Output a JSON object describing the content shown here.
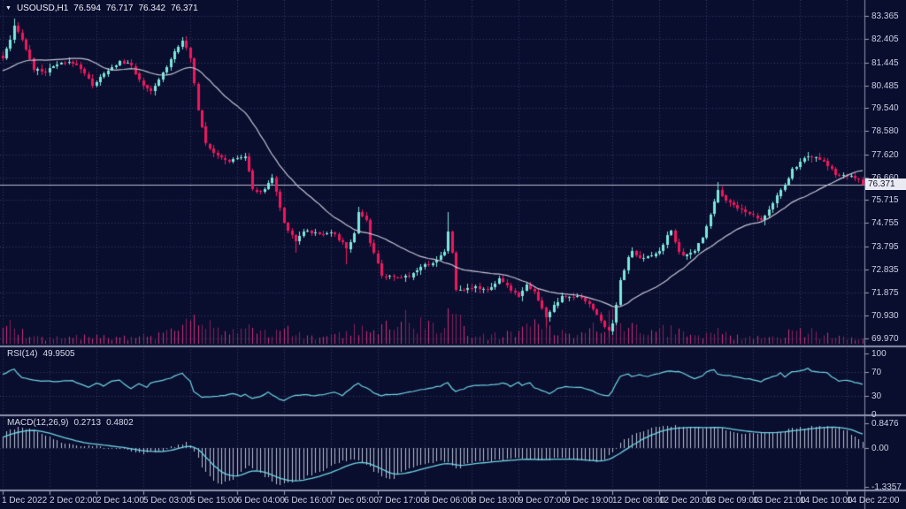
{
  "window": {
    "caret": "▼",
    "title_symbol": "USOUSD,H1"
  },
  "quote": {
    "open": "76.594",
    "high": "76.717",
    "low": "76.342",
    "close": "76.371"
  },
  "indicators": {
    "rsi": {
      "label": "RSI(14)",
      "value": "49.9505",
      "ticks": [
        "100",
        "70",
        "30",
        "0"
      ],
      "levels": [
        70,
        30
      ]
    },
    "macd": {
      "label": "MACD(12,26,9)",
      "macd_value": "0.2713",
      "signal_value": "0.4802",
      "ticks": [
        "0.8476",
        "0.00",
        "-1.3357"
      ]
    }
  },
  "price_axis": {
    "ticks": [
      "83.365",
      "82.405",
      "81.445",
      "80.485",
      "79.540",
      "78.580",
      "77.620",
      "76.660",
      "75.715",
      "74.755",
      "73.795",
      "72.835",
      "71.875",
      "70.930",
      "69.970"
    ],
    "current": "76.371"
  },
  "time_axis": {
    "ticks": [
      "1 Dec 2022",
      "2 Dec 02:00",
      "2 Dec 14:00",
      "5 Dec 03:00",
      "5 Dec 15:00",
      "6 Dec 04:00",
      "6 Dec 16:00",
      "7 Dec 05:00",
      "7 Dec 17:00",
      "8 Dec 06:00",
      "8 Dec 18:00",
      "9 Dec 07:00",
      "9 Dec 19:00",
      "12 Dec 08:00",
      "12 Dec 20:00",
      "13 Dec 09:00",
      "13 Dec 21:00",
      "14 Dec 10:00",
      "14 Dec 22:00"
    ]
  },
  "chart_data": {
    "type": "candlestick",
    "symbol": "USOUSD",
    "timeframe": "H1",
    "bars": 221,
    "bars_per_time_tick": 12,
    "current_price": 76.371,
    "price_ticks": [
      83.365,
      82.405,
      81.445,
      80.485,
      79.54,
      78.58,
      77.62,
      76.66,
      75.715,
      74.755,
      73.795,
      72.835,
      71.875,
      70.93,
      69.97
    ],
    "price_range_top": 83.365,
    "price_range_bottom": 69.97,
    "ma_period": 22,
    "ma_seed_price": 81.0,
    "close_path": [
      [
        0,
        81.6
      ],
      [
        2,
        82.35
      ],
      [
        3,
        82.9
      ],
      [
        5,
        82.45
      ],
      [
        6,
        82.0
      ],
      [
        8,
        81.15
      ],
      [
        11,
        81.05
      ],
      [
        14,
        81.35
      ],
      [
        18,
        81.45
      ],
      [
        20,
        81.2
      ],
      [
        23,
        80.5
      ],
      [
        26,
        80.95
      ],
      [
        30,
        81.5
      ],
      [
        33,
        81.3
      ],
      [
        36,
        80.45
      ],
      [
        38,
        80.2
      ],
      [
        41,
        81.0
      ],
      [
        44,
        81.9
      ],
      [
        46,
        82.4
      ],
      [
        48,
        81.6
      ],
      [
        50,
        79.5
      ],
      [
        52,
        78.1
      ],
      [
        55,
        77.5
      ],
      [
        58,
        77.35
      ],
      [
        62,
        77.55
      ],
      [
        64,
        76.2
      ],
      [
        66,
        76.0
      ],
      [
        69,
        76.65
      ],
      [
        71,
        75.4
      ],
      [
        72,
        74.75
      ],
      [
        75,
        74.0
      ],
      [
        77,
        74.45
      ],
      [
        81,
        74.3
      ],
      [
        84,
        74.4
      ],
      [
        87,
        73.9
      ],
      [
        88,
        73.7
      ],
      [
        90,
        74.3
      ],
      [
        91,
        75.25
      ],
      [
        93,
        74.9
      ],
      [
        94,
        73.9
      ],
      [
        97,
        72.6
      ],
      [
        100,
        72.45
      ],
      [
        104,
        72.55
      ],
      [
        107,
        72.95
      ],
      [
        111,
        73.2
      ],
      [
        113,
        73.6
      ],
      [
        114,
        74.45
      ],
      [
        115,
        73.5
      ],
      [
        116,
        71.95
      ],
      [
        119,
        72.1
      ],
      [
        124,
        72.0
      ],
      [
        127,
        72.4
      ],
      [
        130,
        72.0
      ],
      [
        132,
        71.75
      ],
      [
        134,
        72.2
      ],
      [
        136,
        71.9
      ],
      [
        139,
        70.85
      ],
      [
        141,
        71.3
      ],
      [
        143,
        71.65
      ],
      [
        147,
        71.7
      ],
      [
        150,
        71.4
      ],
      [
        153,
        70.7
      ],
      [
        155,
        70.25
      ],
      [
        156,
        70.6
      ],
      [
        157,
        71.4
      ],
      [
        158,
        72.4
      ],
      [
        160,
        73.3
      ],
      [
        161,
        73.6
      ],
      [
        163,
        73.25
      ],
      [
        166,
        73.4
      ],
      [
        168,
        73.6
      ],
      [
        170,
        74.2
      ],
      [
        171,
        74.45
      ],
      [
        173,
        73.6
      ],
      [
        174,
        73.35
      ],
      [
        177,
        73.6
      ],
      [
        179,
        74.2
      ],
      [
        181,
        75.1
      ],
      [
        183,
        76.2
      ],
      [
        185,
        75.7
      ],
      [
        187,
        75.5
      ],
      [
        190,
        75.2
      ],
      [
        193,
        75.0
      ],
      [
        194,
        74.9
      ],
      [
        196,
        75.3
      ],
      [
        198,
        75.9
      ],
      [
        200,
        76.3
      ],
      [
        202,
        77.0
      ],
      [
        204,
        77.3
      ],
      [
        206,
        77.55
      ],
      [
        208,
        77.45
      ],
      [
        210,
        77.3
      ],
      [
        212,
        77.0
      ],
      [
        213,
        76.75
      ],
      [
        216,
        76.7
      ],
      [
        218,
        76.65
      ],
      [
        219,
        76.55
      ],
      [
        220,
        76.371
      ]
    ],
    "extremes": [
      [
        3,
        "h",
        83.28
      ],
      [
        46,
        "h",
        82.5
      ],
      [
        75,
        "l",
        73.55
      ],
      [
        88,
        "l",
        73.05
      ],
      [
        91,
        "h",
        75.45
      ],
      [
        114,
        "h",
        75.2
      ],
      [
        139,
        "l",
        70.45
      ],
      [
        155,
        "l",
        69.97
      ],
      [
        183,
        "h",
        76.45
      ],
      [
        206,
        "h",
        77.7
      ]
    ],
    "volume_path": [
      [
        0,
        14
      ],
      [
        3,
        22
      ],
      [
        6,
        10
      ],
      [
        12,
        6
      ],
      [
        20,
        8
      ],
      [
        30,
        7
      ],
      [
        40,
        9
      ],
      [
        45,
        14
      ],
      [
        48,
        30
      ],
      [
        50,
        38
      ],
      [
        53,
        26
      ],
      [
        58,
        12
      ],
      [
        63,
        16
      ],
      [
        68,
        10
      ],
      [
        72,
        16
      ],
      [
        78,
        7
      ],
      [
        83,
        6
      ],
      [
        88,
        14
      ],
      [
        91,
        18
      ],
      [
        94,
        16
      ],
      [
        97,
        20
      ],
      [
        100,
        24
      ],
      [
        103,
        28
      ],
      [
        106,
        22
      ],
      [
        109,
        26
      ],
      [
        112,
        20
      ],
      [
        114,
        30
      ],
      [
        116,
        34
      ],
      [
        119,
        12
      ],
      [
        124,
        8
      ],
      [
        128,
        10
      ],
      [
        132,
        14
      ],
      [
        135,
        18
      ],
      [
        138,
        24
      ],
      [
        140,
        18
      ],
      [
        143,
        12
      ],
      [
        147,
        10
      ],
      [
        150,
        14
      ],
      [
        153,
        22
      ],
      [
        155,
        30
      ],
      [
        157,
        36
      ],
      [
        158,
        28
      ],
      [
        161,
        18
      ],
      [
        164,
        12
      ],
      [
        168,
        14
      ],
      [
        171,
        16
      ],
      [
        174,
        10
      ],
      [
        178,
        8
      ],
      [
        181,
        12
      ],
      [
        183,
        16
      ],
      [
        186,
        8
      ],
      [
        190,
        7
      ],
      [
        194,
        8
      ],
      [
        198,
        10
      ],
      [
        202,
        12
      ],
      [
        206,
        14
      ],
      [
        210,
        10
      ],
      [
        213,
        12
      ],
      [
        216,
        8
      ],
      [
        220,
        6
      ]
    ],
    "rsi_path": [
      [
        0,
        66
      ],
      [
        3,
        74
      ],
      [
        5,
        61
      ],
      [
        9,
        55
      ],
      [
        13,
        54
      ],
      [
        18,
        56
      ],
      [
        22,
        44
      ],
      [
        24,
        51
      ],
      [
        26,
        47
      ],
      [
        28,
        55
      ],
      [
        30,
        57
      ],
      [
        31,
        50
      ],
      [
        33,
        43
      ],
      [
        35,
        50
      ],
      [
        37,
        44
      ],
      [
        38,
        52
      ],
      [
        40,
        55
      ],
      [
        43,
        60
      ],
      [
        46,
        67
      ],
      [
        48,
        55
      ],
      [
        49,
        38
      ],
      [
        51,
        28
      ],
      [
        54,
        30
      ],
      [
        57,
        31
      ],
      [
        59,
        34
      ],
      [
        61,
        30
      ],
      [
        62,
        33
      ],
      [
        64,
        27
      ],
      [
        66,
        30
      ],
      [
        68,
        36
      ],
      [
        70,
        29
      ],
      [
        72,
        22
      ],
      [
        74,
        30
      ],
      [
        77,
        33
      ],
      [
        80,
        31
      ],
      [
        83,
        34
      ],
      [
        85,
        36
      ],
      [
        87,
        31
      ],
      [
        89,
        42
      ],
      [
        91,
        52
      ],
      [
        92,
        47
      ],
      [
        94,
        40
      ],
      [
        95,
        35
      ],
      [
        97,
        31
      ],
      [
        99,
        33
      ],
      [
        101,
        32
      ],
      [
        103,
        35
      ],
      [
        105,
        38
      ],
      [
        108,
        41
      ],
      [
        110,
        44
      ],
      [
        112,
        47
      ],
      [
        114,
        52
      ],
      [
        115,
        43
      ],
      [
        116,
        38
      ],
      [
        118,
        42
      ],
      [
        120,
        47
      ],
      [
        123,
        48
      ],
      [
        126,
        49
      ],
      [
        128,
        52
      ],
      [
        130,
        46
      ],
      [
        132,
        53
      ],
      [
        133,
        48
      ],
      [
        135,
        52
      ],
      [
        136,
        44
      ],
      [
        138,
        40
      ],
      [
        140,
        34
      ],
      [
        142,
        43
      ],
      [
        144,
        46
      ],
      [
        147,
        45
      ],
      [
        149,
        43
      ],
      [
        151,
        38
      ],
      [
        153,
        32
      ],
      [
        155,
        31
      ],
      [
        156,
        38
      ],
      [
        158,
        62
      ],
      [
        160,
        66
      ],
      [
        161,
        62
      ],
      [
        163,
        65
      ],
      [
        165,
        62
      ],
      [
        166,
        64
      ],
      [
        169,
        69
      ],
      [
        171,
        71
      ],
      [
        173,
        70
      ],
      [
        176,
        62
      ],
      [
        177,
        58
      ],
      [
        179,
        64
      ],
      [
        180,
        69
      ],
      [
        182,
        74
      ],
      [
        183,
        66
      ],
      [
        186,
        64
      ],
      [
        188,
        61
      ],
      [
        190,
        59
      ],
      [
        192,
        57
      ],
      [
        194,
        53
      ],
      [
        195,
        58
      ],
      [
        198,
        64
      ],
      [
        199,
        68
      ],
      [
        200,
        62
      ],
      [
        202,
        70
      ],
      [
        204,
        71
      ],
      [
        206,
        75
      ],
      [
        207,
        72
      ],
      [
        209,
        70
      ],
      [
        211,
        69
      ],
      [
        212,
        61
      ],
      [
        214,
        55
      ],
      [
        216,
        56
      ],
      [
        217,
        54
      ],
      [
        219,
        52
      ],
      [
        220,
        49.95
      ]
    ],
    "macd_signal_path": [
      [
        0,
        0.37
      ],
      [
        4,
        0.55
      ],
      [
        8,
        0.62
      ],
      [
        12,
        0.52
      ],
      [
        16,
        0.35
      ],
      [
        21,
        0.18
      ],
      [
        26,
        0.1
      ],
      [
        31,
        0.02
      ],
      [
        36,
        -0.1
      ],
      [
        41,
        -0.13
      ],
      [
        45,
        -0.03
      ],
      [
        48,
        0.1
      ],
      [
        50,
        0.0
      ],
      [
        53,
        -0.45
      ],
      [
        56,
        -0.85
      ],
      [
        60,
        -1.0
      ],
      [
        64,
        -0.75
      ],
      [
        68,
        -0.85
      ],
      [
        71,
        -1.05
      ],
      [
        75,
        -1.15
      ],
      [
        79,
        -1.05
      ],
      [
        84,
        -0.85
      ],
      [
        88,
        -0.62
      ],
      [
        91,
        -0.48
      ],
      [
        94,
        -0.52
      ],
      [
        97,
        -0.72
      ],
      [
        100,
        -0.92
      ],
      [
        104,
        -0.85
      ],
      [
        108,
        -0.7
      ],
      [
        111,
        -0.6
      ],
      [
        114,
        -0.5
      ],
      [
        117,
        -0.62
      ],
      [
        120,
        -0.55
      ],
      [
        125,
        -0.48
      ],
      [
        130,
        -0.42
      ],
      [
        134,
        -0.38
      ],
      [
        138,
        -0.4
      ],
      [
        142,
        -0.38
      ],
      [
        146,
        -0.38
      ],
      [
        150,
        -0.42
      ],
      [
        154,
        -0.46
      ],
      [
        157,
        -0.28
      ],
      [
        160,
        0.0
      ],
      [
        163,
        0.25
      ],
      [
        166,
        0.45
      ],
      [
        169,
        0.6
      ],
      [
        172,
        0.68
      ],
      [
        176,
        0.71
      ],
      [
        180,
        0.7
      ],
      [
        184,
        0.71
      ],
      [
        188,
        0.62
      ],
      [
        192,
        0.55
      ],
      [
        196,
        0.52
      ],
      [
        200,
        0.55
      ],
      [
        204,
        0.62
      ],
      [
        208,
        0.68
      ],
      [
        212,
        0.72
      ],
      [
        215,
        0.7
      ],
      [
        218,
        0.6
      ],
      [
        220,
        0.48
      ]
    ],
    "macd_axis_max": 0.8476,
    "macd_axis_min": -1.3357,
    "rsi_levels": [
      70,
      30
    ]
  },
  "colors": {
    "background": "#0a0e2e",
    "bull": "#7de8dc",
    "bear": "#f0175f",
    "volume": "#d12d78",
    "ma_line": "#c4c6d6",
    "indicator_line": "#70d6e6",
    "histogram": "#b9c2d4",
    "grid": "rgba(128,143,198,0.38)",
    "separator": "#8d93ad",
    "axis_text": "#ccd1e4",
    "current_price_line": "#b9bdcf",
    "price_tag_bg": "#e9eaf2",
    "price_tag_text": "#10142f"
  }
}
